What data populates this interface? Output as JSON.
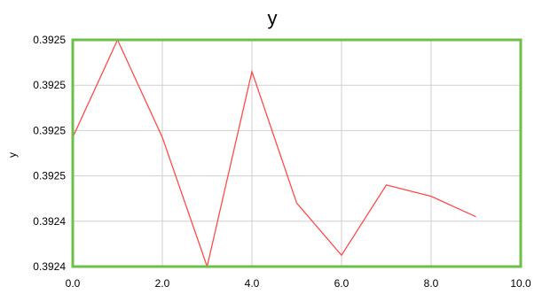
{
  "chart_data": {
    "type": "line",
    "title": "y",
    "xlabel": "",
    "ylabel": "y",
    "x_ticks": [
      "0.0",
      "2.0",
      "4.0",
      "6.0",
      "8.0",
      "10.0"
    ],
    "y_ticks": [
      "0.3924",
      "0.3924",
      "0.3925",
      "0.3925",
      "0.3925",
      "0.3925"
    ],
    "xlim": [
      0,
      10
    ],
    "ylim": [
      0.3924,
      0.3925
    ],
    "grid": true,
    "colors": {
      "plot_border": "#6cc04a",
      "line": "#ff4a4a",
      "grid": "#cfcfcf"
    },
    "series": [
      {
        "x": [
          0,
          1,
          2,
          3,
          4,
          5,
          6,
          7,
          8,
          9
        ],
        "y": [
          0.392457,
          0.3925,
          0.392457,
          0.3924,
          0.392486,
          0.392428,
          0.392405,
          0.392436,
          0.392431,
          0.392422
        ]
      }
    ]
  }
}
